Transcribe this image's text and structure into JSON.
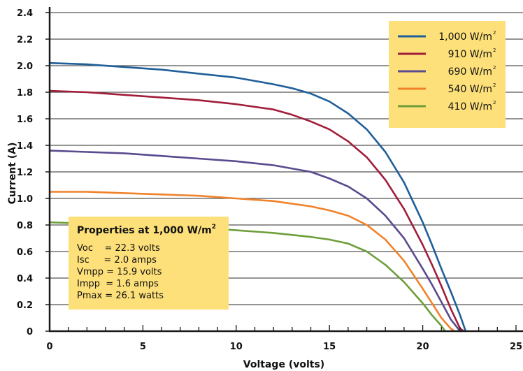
{
  "chart_data": {
    "type": "line",
    "xlabel": "Voltage (volts)",
    "ylabel": "Current (A)",
    "xlim": [
      0,
      25
    ],
    "ylim": [
      0,
      2.4
    ],
    "xticks": [
      "0",
      "5",
      "10",
      "15",
      "20",
      "25"
    ],
    "yticks": [
      "0",
      "0.2",
      "0.4",
      "0.6",
      "0.8",
      "1.0",
      "1.2",
      "1.4",
      "1.6",
      "1.8",
      "2.0",
      "2.2",
      "2.4"
    ],
    "grid": "horizontal",
    "legend_position": "top-right",
    "series": [
      {
        "name": "1,000 W/m",
        "sup": "2",
        "color": "#1f5f99",
        "x": [
          0,
          2,
          4,
          6,
          8,
          10,
          12,
          13,
          14,
          15,
          16,
          17,
          18,
          19,
          20,
          20.5,
          21,
          21.5,
          22,
          22.3
        ],
        "y": [
          2.02,
          2.01,
          1.99,
          1.97,
          1.94,
          1.91,
          1.86,
          1.83,
          1.79,
          1.73,
          1.64,
          1.52,
          1.35,
          1.12,
          0.82,
          0.65,
          0.47,
          0.3,
          0.12,
          0
        ]
      },
      {
        "name": "910 W/m",
        "sup": "2",
        "color": "#a11d3a",
        "x": [
          0,
          2,
          4,
          6,
          8,
          10,
          12,
          13,
          14,
          15,
          16,
          17,
          18,
          19,
          20,
          20.5,
          21,
          21.5,
          22,
          22.2
        ],
        "y": [
          1.81,
          1.8,
          1.78,
          1.76,
          1.74,
          1.71,
          1.67,
          1.63,
          1.58,
          1.52,
          1.43,
          1.31,
          1.14,
          0.92,
          0.65,
          0.5,
          0.34,
          0.17,
          0.02,
          0
        ]
      },
      {
        "name": "690 W/m",
        "sup": "2",
        "color": "#5a4a8f",
        "x": [
          0,
          2,
          4,
          6,
          8,
          10,
          12,
          14,
          15,
          16,
          17,
          18,
          19,
          20,
          20.5,
          21,
          21.5,
          22
        ],
        "y": [
          1.36,
          1.35,
          1.34,
          1.32,
          1.3,
          1.28,
          1.25,
          1.2,
          1.15,
          1.09,
          1.0,
          0.87,
          0.7,
          0.47,
          0.35,
          0.22,
          0.09,
          0
        ]
      },
      {
        "name": "540 W/m",
        "sup": "2",
        "color": "#f0822a",
        "x": [
          0,
          2,
          4,
          6,
          8,
          10,
          12,
          14,
          15,
          16,
          17,
          18,
          19,
          20,
          20.5,
          21,
          21.5,
          21.7
        ],
        "y": [
          1.05,
          1.05,
          1.04,
          1.03,
          1.02,
          1.0,
          0.98,
          0.94,
          0.91,
          0.87,
          0.8,
          0.69,
          0.53,
          0.32,
          0.21,
          0.1,
          0.02,
          0
        ]
      },
      {
        "name": "410 W/m",
        "sup": "2",
        "color": "#6e9e3a",
        "x": [
          0,
          2,
          4,
          6,
          8,
          10,
          12,
          14,
          15,
          16,
          17,
          18,
          19,
          20,
          20.5,
          21,
          21.2
        ],
        "y": [
          0.82,
          0.81,
          0.8,
          0.79,
          0.78,
          0.76,
          0.74,
          0.71,
          0.69,
          0.66,
          0.6,
          0.5,
          0.37,
          0.21,
          0.12,
          0.04,
          0
        ]
      }
    ],
    "annotation": {
      "title": "Properties at 1,000 W/m",
      "title_sup": "2",
      "lines": [
        "Voc    = 22.3 volts",
        "Isc     = 2.0 amps",
        "Vmpp = 15.9 volts",
        "Impp  = 1.6 amps",
        "Pmax = 26.1 watts"
      ]
    },
    "colors": {
      "axis": "#1a1a1a",
      "grid": "#555555",
      "box_fill": "#fde07a"
    }
  }
}
